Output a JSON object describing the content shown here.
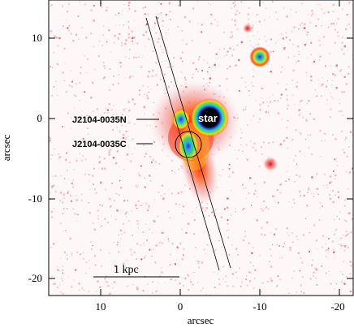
{
  "axes": {
    "x_title": "arcsec",
    "y_title": "arcsec",
    "x_ticks": [
      "10",
      "0",
      "-10",
      "-20"
    ],
    "y_ticks": [
      "10",
      "0",
      "-10",
      "-20"
    ]
  },
  "labels": {
    "north": "J2104-0035N",
    "center": "J2104-0035C",
    "star": "star",
    "scale": "1 kpc"
  },
  "colors": {
    "background_noise": "#e8a3ad",
    "frame": "#000000"
  }
}
